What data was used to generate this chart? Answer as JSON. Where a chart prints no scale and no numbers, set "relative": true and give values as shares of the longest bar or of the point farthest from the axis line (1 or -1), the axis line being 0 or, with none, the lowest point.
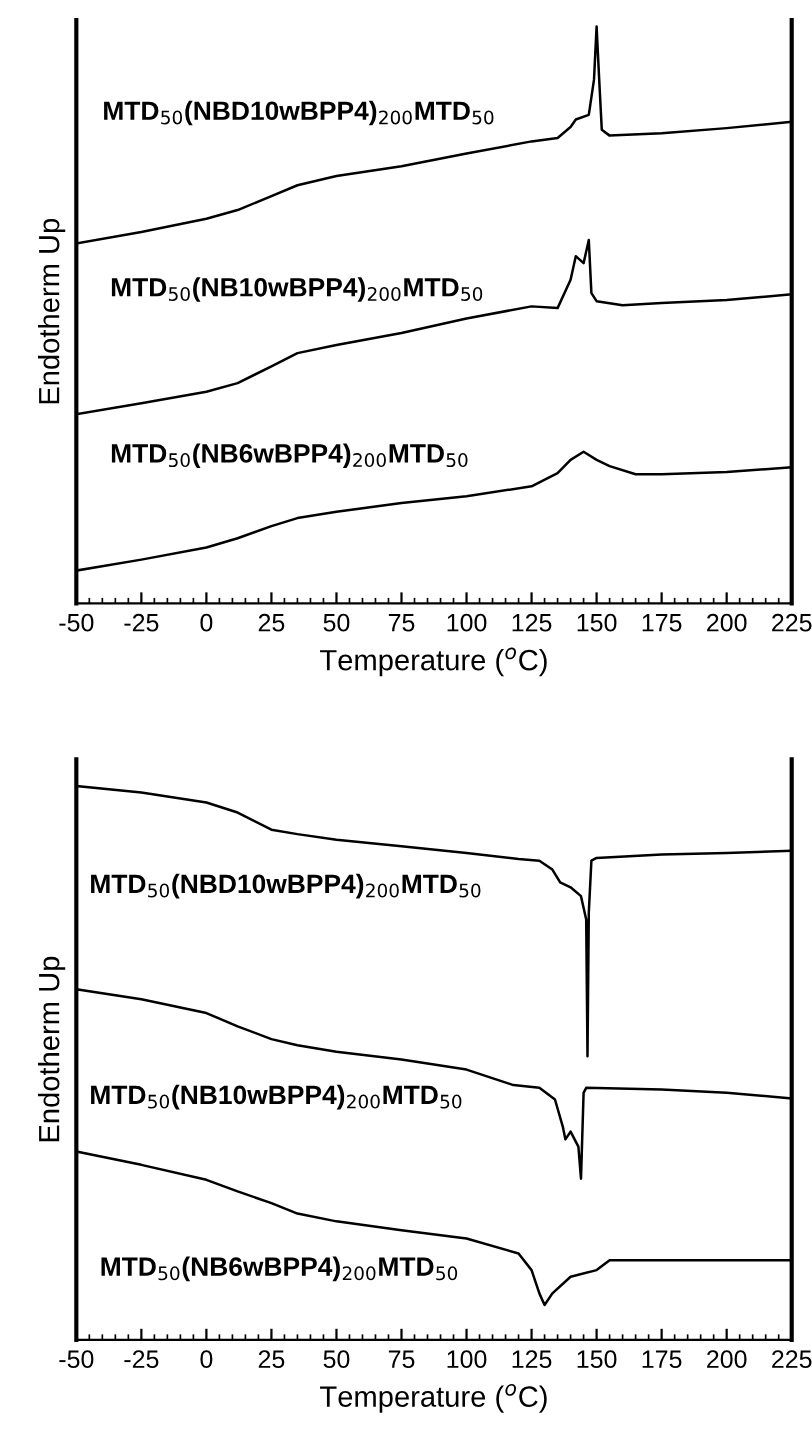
{
  "chart_data": [
    {
      "type": "line",
      "relative": true,
      "xlabel": "Temperature ($^{o}$C)",
      "ylabel": "Endotherm Up",
      "xlim": [
        -50,
        225
      ],
      "xticks": [
        -50,
        -25,
        0,
        25,
        50,
        75,
        100,
        125,
        150,
        175,
        200,
        225
      ],
      "tick_labels": "x",
      "grid": false,
      "legend": false,
      "marker": "none",
      "line_style": "solid",
      "series": [
        {
          "name": "MTD$_{50}$(NBD10wBPP4)$_{200}$MTD$_{50}$",
          "color": "#000000",
          "x": [
            -50,
            -25,
            0,
            12,
            25,
            35,
            50,
            75,
            100,
            125,
            135,
            140,
            142,
            147,
            149,
            150,
            151,
            152,
            155,
            175,
            200,
            225
          ],
          "values": [
            0.624,
            0.644,
            0.667,
            0.682,
            0.706,
            0.725,
            0.741,
            0.758,
            0.78,
            0.801,
            0.807,
            0.826,
            0.839,
            0.847,
            0.908,
            1.0,
            0.908,
            0.821,
            0.811,
            0.815,
            0.824,
            0.835
          ]
        },
        {
          "name": "MTD$_{50}$(NB10wBPP4)$_{200}$MTD$_{50}$",
          "color": "#000000",
          "x": [
            -50,
            -25,
            0,
            12,
            25,
            35,
            50,
            75,
            100,
            125,
            135,
            140,
            142,
            145,
            147,
            148,
            150,
            160,
            175,
            200,
            225
          ],
          "values": [
            0.328,
            0.347,
            0.367,
            0.382,
            0.411,
            0.434,
            0.448,
            0.469,
            0.494,
            0.515,
            0.512,
            0.561,
            0.602,
            0.59,
            0.63,
            0.538,
            0.524,
            0.517,
            0.521,
            0.526,
            0.536
          ]
        },
        {
          "name": "MTD$_{50}$(NB6wBPP4)$_{200}$MTD$_{50}$",
          "color": "#000000",
          "x": [
            -50,
            -25,
            0,
            12,
            25,
            35,
            50,
            75,
            100,
            125,
            135,
            140,
            145,
            150,
            155,
            165,
            175,
            200,
            225
          ],
          "values": [
            0.057,
            0.076,
            0.097,
            0.113,
            0.134,
            0.148,
            0.159,
            0.174,
            0.186,
            0.203,
            0.226,
            0.249,
            0.263,
            0.249,
            0.238,
            0.224,
            0.224,
            0.228,
            0.236
          ]
        }
      ]
    },
    {
      "type": "line",
      "relative": true,
      "xlabel": "Temperature ($^{o}$C)",
      "ylabel": "Endotherm Up",
      "xlim": [
        -50,
        225
      ],
      "xticks": [
        -50,
        -25,
        0,
        25,
        50,
        75,
        100,
        125,
        150,
        175,
        200,
        225
      ],
      "tick_labels": "x",
      "grid": false,
      "legend": false,
      "marker": "none",
      "line_style": "solid",
      "series": [
        {
          "name": "MTD$_{50}$(NBD10wBPP4)$_{200}$MTD$_{50}$",
          "color": "#000000",
          "x": [
            -50,
            -25,
            0,
            12,
            25,
            35,
            50,
            75,
            100,
            120,
            128,
            133,
            136,
            140,
            144,
            146,
            146.5,
            147,
            148,
            150,
            175,
            200,
            225
          ],
          "values": [
            1.0,
            0.988,
            0.97,
            0.952,
            0.921,
            0.913,
            0.903,
            0.891,
            0.879,
            0.868,
            0.865,
            0.849,
            0.826,
            0.817,
            0.801,
            0.759,
            0.512,
            0.771,
            0.865,
            0.87,
            0.876,
            0.879,
            0.883
          ]
        },
        {
          "name": "MTD$_{50}$(NB10wBPP4)$_{200}$MTD$_{50}$",
          "color": "#000000",
          "x": [
            -50,
            -25,
            0,
            12,
            25,
            35,
            50,
            75,
            100,
            118,
            128,
            134,
            137,
            138,
            140,
            143,
            144,
            145,
            146,
            175,
            200,
            225
          ],
          "values": [
            0.633,
            0.615,
            0.59,
            0.566,
            0.543,
            0.532,
            0.52,
            0.506,
            0.488,
            0.46,
            0.455,
            0.434,
            0.385,
            0.362,
            0.376,
            0.349,
            0.291,
            0.446,
            0.455,
            0.452,
            0.446,
            0.436
          ]
        },
        {
          "name": "MTD$_{50}$(NB6wBPP4)$_{200}$MTD$_{50}$",
          "color": "#000000",
          "x": [
            -50,
            -25,
            0,
            12,
            25,
            35,
            50,
            75,
            100,
            120,
            125,
            128,
            130,
            133,
            140,
            150,
            155,
            175,
            200,
            225
          ],
          "values": [
            0.34,
            0.316,
            0.289,
            0.268,
            0.247,
            0.228,
            0.214,
            0.198,
            0.183,
            0.156,
            0.126,
            0.084,
            0.063,
            0.084,
            0.114,
            0.126,
            0.144,
            0.144,
            0.144,
            0.144
          ]
        }
      ]
    }
  ]
}
